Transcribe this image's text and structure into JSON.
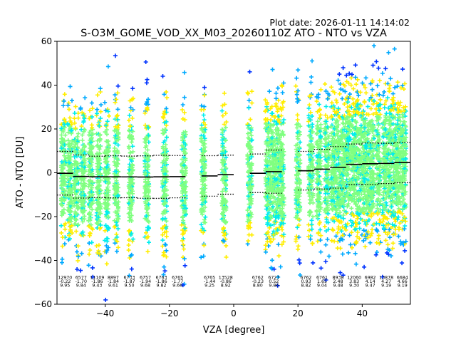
{
  "chart_data": {
    "type": "scatter",
    "plot_date": "Plot date: 2026-01-11 14:14:02",
    "title": "S-O3M_GOME_VOD_XX_M03_20260110Z ATO - NTO vs VZA",
    "xlabel": "VZA [degree]",
    "ylabel": "ATO - NTO [DU]",
    "xlim": [
      -55,
      55
    ],
    "ylim": [
      -60,
      60
    ],
    "xticks": [
      -40,
      -20,
      0,
      20,
      40
    ],
    "xtick_labels": [
      "−40",
      "−20",
      "0",
      "20",
      "40"
    ],
    "yticks": [
      -60,
      -40,
      -20,
      0,
      20,
      40,
      60
    ],
    "ytick_labels": [
      "−60",
      "−40",
      "−20",
      "0",
      "20",
      "40",
      "60"
    ],
    "marker": "+",
    "colors": {
      "low_density": "#0033ff",
      "mid_low_density": "#00aaff",
      "mid_density": "#00eeee",
      "high_density": "#80ff80",
      "outer_density": "#ffee00",
      "mean_line": "#000000"
    },
    "bins": [
      {
        "vza": -52.5,
        "count": "12970",
        "mean": "-0.22",
        "std": "9.95"
      },
      {
        "vza": -47.5,
        "count": "6577",
        "mean": "-1.70",
        "std": "9.84"
      },
      {
        "vza": -42.5,
        "count": "11109",
        "mean": "-1.86",
        "std": "9.43"
      },
      {
        "vza": -37.5,
        "count": "8897",
        "mean": "-1.84",
        "std": "9.61"
      },
      {
        "vza": -32.5,
        "count": "6733",
        "mean": "-1.87",
        "std": "9.50"
      },
      {
        "vza": -27.5,
        "count": "6757",
        "mean": "-1.94",
        "std": "9.68"
      },
      {
        "vza": -22.5,
        "count": "6763",
        "mean": "-1.86",
        "std": "9.82"
      },
      {
        "vza": -17.5,
        "count": "6765",
        "mean": "-1.77",
        "std": "9.66"
      },
      {
        "vza": -7.5,
        "count": "6765",
        "mean": "-1.44",
        "std": "9.25"
      },
      {
        "vza": -2.5,
        "count": "13528",
        "mean": "-0.86",
        "std": "8.92"
      },
      {
        "vza": 7.5,
        "count": "6762",
        "mean": "-0.23",
        "std": "8.80"
      },
      {
        "vza": 12.5,
        "count": "6727",
        "mean": "0.52",
        "std": "9.86"
      },
      {
        "vza": 22.5,
        "count": "6762",
        "mean": "0.93",
        "std": "8.82"
      },
      {
        "vza": 27.5,
        "count": "6761",
        "mean": "1.65",
        "std": "9.04"
      },
      {
        "vza": 32.5,
        "count": "8938",
        "mean": "2.48",
        "std": "9.48"
      },
      {
        "vza": 37.5,
        "count": "12060",
        "mean": "3.83",
        "std": "9.30"
      },
      {
        "vza": 42.5,
        "count": "6982",
        "mean": "4.14",
        "std": "9.47"
      },
      {
        "vza": 47.5,
        "count": "13878",
        "mean": "4.27",
        "std": "9.19"
      },
      {
        "vza": 52.5,
        "count": "6684",
        "mean": "4.66",
        "std": "9.19"
      }
    ],
    "point_columns": [
      -53,
      -51,
      -49,
      -47,
      -44.5,
      -42,
      -39.5,
      -36.5,
      -32,
      -27,
      -21.5,
      -15.5,
      -9.5,
      -3,
      5,
      10.5,
      12,
      13.5,
      15,
      20,
      24,
      26.5,
      29,
      31,
      32.5,
      34,
      35.5,
      37,
      38.5,
      40,
      41.5,
      43,
      45,
      47,
      48.5,
      50,
      51.5,
      53
    ]
  }
}
